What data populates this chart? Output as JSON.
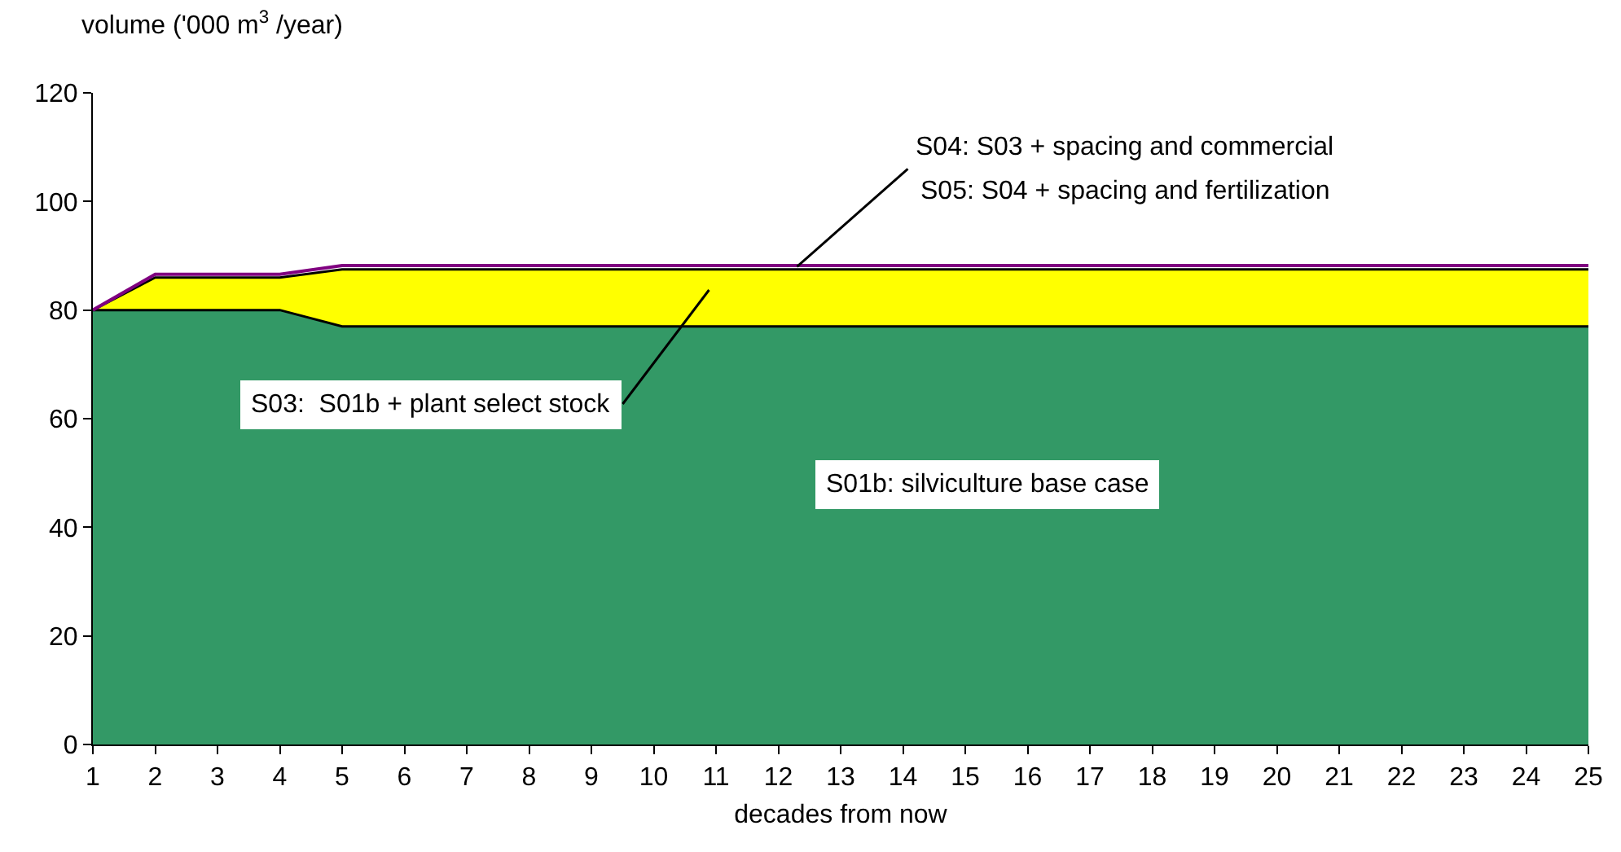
{
  "chart_data": {
    "type": "area",
    "stacked": true,
    "xlabel": "decades from now",
    "ylabel": "volume ('000 m$^{3}$ /year)",
    "x": [
      1,
      2,
      3,
      4,
      5,
      6,
      7,
      8,
      9,
      10,
      11,
      12,
      13,
      14,
      15,
      16,
      17,
      18,
      19,
      20,
      21,
      22,
      23,
      24,
      25
    ],
    "series": [
      {
        "color": "#339966",
        "values": [
          80,
          80,
          80,
          80,
          77,
          77,
          77,
          77,
          77,
          77,
          77,
          77,
          77,
          77,
          77,
          77,
          77,
          77,
          77,
          77,
          77,
          77,
          77,
          77,
          77
        ]
      },
      {
        "color": "#ffff00",
        "values": [
          0,
          6,
          6,
          6,
          10.5,
          10.5,
          10.5,
          10.5,
          10.5,
          10.5,
          10.5,
          10.5,
          10.5,
          10.5,
          10.5,
          10.5,
          10.5,
          10.5,
          10.5,
          10.5,
          10.5,
          10.5,
          10.5,
          10.5,
          10.5
        ]
      },
      {
        "type": "line",
        "color": "#800080",
        "values": [
          80,
          86.6,
          86.6,
          86.6,
          88.2,
          88.2,
          88.2,
          88.2,
          88.2,
          88.2,
          88.2,
          88.2,
          88.2,
          88.2,
          88.2,
          88.2,
          88.2,
          88.2,
          88.2,
          88.2,
          88.2,
          88.2,
          88.2,
          88.2,
          88.2
        ]
      }
    ],
    "xlim": [
      1,
      25
    ],
    "xticks": [
      1,
      2,
      3,
      4,
      5,
      6,
      7,
      8,
      9,
      10,
      11,
      12,
      13,
      14,
      15,
      16,
      17,
      18,
      19,
      20,
      21,
      22,
      23,
      24,
      25
    ],
    "ylim": [
      0,
      120
    ],
    "yticks": [
      0,
      20,
      40,
      60,
      80,
      100,
      120
    ],
    "grid": false,
    "annotations": [
      {
        "text": "S04: S03 + spacing and commercial",
        "x": 12.3,
        "y": 88
      },
      "S05: S04 + spacing and fertilization",
      "S03:  S01b + plant select stock",
      "S01b: silviculture base case"
    ]
  }
}
